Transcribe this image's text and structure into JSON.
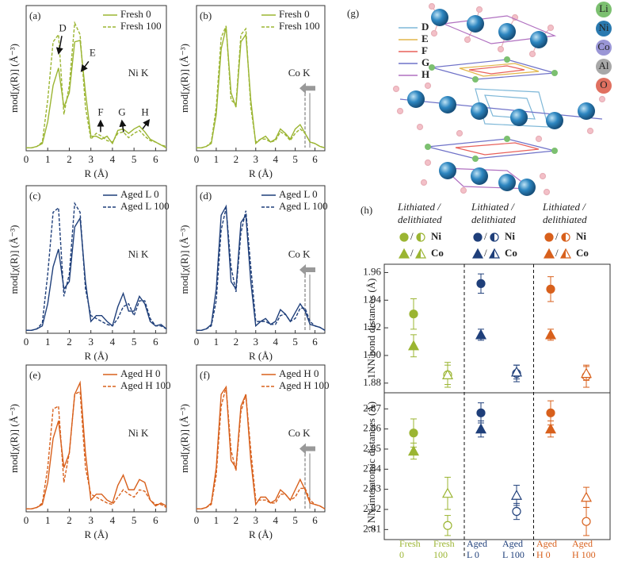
{
  "chart_data": [
    {
      "type": "line",
      "label": "(a)",
      "edge": "Ni K",
      "xlabel": "R (Å)",
      "ylabel": "mod[χ(R)] (Å⁻³)",
      "x": [
        0,
        0.25,
        0.5,
        0.75,
        1,
        1.25,
        1.5,
        1.75,
        2,
        2.25,
        2.5,
        2.75,
        3,
        3.25,
        3.5,
        3.75,
        4,
        4.25,
        4.5,
        4.75,
        5,
        5.25,
        5.5,
        5.75,
        6,
        6.25,
        6.5
      ],
      "xlim": [
        0,
        6.5
      ],
      "xticks": [
        0,
        1,
        2,
        3,
        4,
        5,
        6
      ],
      "ylim": [
        0,
        1
      ],
      "series": [
        {
          "name": "Fresh 0",
          "color": "#9bb532",
          "dash": false,
          "values": [
            0.02,
            0.02,
            0.03,
            0.05,
            0.2,
            0.45,
            0.57,
            0.3,
            0.4,
            0.75,
            0.76,
            0.4,
            0.1,
            0.1,
            0.08,
            0.1,
            0.05,
            0.14,
            0.15,
            0.12,
            0.15,
            0.17,
            0.13,
            0.08,
            0.06,
            0.04,
            0.02
          ]
        },
        {
          "name": "Fresh 100",
          "color": "#9bb532",
          "dash": true,
          "values": [
            0.02,
            0.02,
            0.03,
            0.06,
            0.35,
            0.75,
            0.8,
            0.25,
            0.45,
            0.88,
            0.8,
            0.3,
            0.08,
            0.12,
            0.1,
            0.07,
            0.06,
            0.12,
            0.13,
            0.09,
            0.12,
            0.14,
            0.1,
            0.07,
            0.06,
            0.04,
            0.03
          ]
        }
      ],
      "annotations": [
        {
          "text": "D",
          "x": 1.69,
          "y": 0.84
        },
        {
          "text": "E",
          "x": 3.08,
          "y": 0.67
        },
        {
          "text": "F",
          "x": 3.45,
          "y": 0.26
        },
        {
          "text": "G",
          "x": 4.44,
          "y": 0.26
        },
        {
          "text": "H",
          "x": 5.51,
          "y": 0.26
        }
      ]
    },
    {
      "type": "line",
      "label": "(b)",
      "edge": "Co K",
      "xlabel": "R (Å)",
      "ylabel": "mod[χ(R)] (Å⁻³)",
      "x": [
        0,
        0.25,
        0.5,
        0.75,
        1,
        1.25,
        1.5,
        1.75,
        2,
        2.25,
        2.5,
        2.75,
        3,
        3.25,
        3.5,
        3.75,
        4,
        4.25,
        4.5,
        4.75,
        5,
        5.25,
        5.5,
        5.75,
        6,
        6.25,
        6.5
      ],
      "xlim": [
        0,
        6.5
      ],
      "xticks": [
        0,
        1,
        2,
        3,
        4,
        5,
        6
      ],
      "ylim": [
        0,
        1
      ],
      "series": [
        {
          "name": "Fresh 0",
          "color": "#9bb532",
          "dash": false,
          "values": [
            0.02,
            0.02,
            0.03,
            0.05,
            0.25,
            0.7,
            0.85,
            0.4,
            0.3,
            0.75,
            0.8,
            0.35,
            0.05,
            0.08,
            0.1,
            0.06,
            0.08,
            0.15,
            0.12,
            0.08,
            0.15,
            0.18,
            0.12,
            0.06,
            0.05,
            0.03,
            0.02
          ]
        },
        {
          "name": "Fresh 100",
          "color": "#9bb532",
          "dash": true,
          "values": [
            0.02,
            0.02,
            0.03,
            0.06,
            0.3,
            0.78,
            0.86,
            0.35,
            0.32,
            0.8,
            0.84,
            0.3,
            0.06,
            0.08,
            0.08,
            0.06,
            0.07,
            0.13,
            0.11,
            0.07,
            0.12,
            0.15,
            0.12,
            0.06,
            0.05,
            0.03,
            0.02
          ]
        }
      ]
    },
    {
      "type": "line",
      "label": "(c)",
      "edge": "Ni K",
      "xlabel": "R (Å)",
      "ylabel": "mod[χ(R)] (Å⁻³)",
      "x": [
        0,
        0.25,
        0.5,
        0.75,
        1,
        1.25,
        1.5,
        1.75,
        2,
        2.25,
        2.5,
        2.75,
        3,
        3.25,
        3.5,
        3.75,
        4,
        4.25,
        4.5,
        4.75,
        5,
        5.25,
        5.5,
        5.75,
        6,
        6.25,
        6.5
      ],
      "xlim": [
        0,
        6.5
      ],
      "xticks": [
        0,
        1,
        2,
        3,
        4,
        5,
        6
      ],
      "ylim": [
        0,
        1
      ],
      "series": [
        {
          "name": "Aged L 0",
          "color": "#1f3f7a",
          "dash": false,
          "values": [
            0.02,
            0.02,
            0.03,
            0.05,
            0.2,
            0.45,
            0.57,
            0.3,
            0.35,
            0.72,
            0.78,
            0.35,
            0.08,
            0.12,
            0.12,
            0.08,
            0.05,
            0.18,
            0.27,
            0.15,
            0.15,
            0.25,
            0.2,
            0.08,
            0.05,
            0.06,
            0.03
          ]
        },
        {
          "name": "Aged L 100",
          "color": "#1f3f7a",
          "dash": true,
          "values": [
            0.02,
            0.02,
            0.03,
            0.07,
            0.4,
            0.82,
            0.85,
            0.25,
            0.4,
            0.88,
            0.82,
            0.3,
            0.12,
            0.1,
            0.08,
            0.06,
            0.05,
            0.1,
            0.18,
            0.2,
            0.12,
            0.22,
            0.22,
            0.1,
            0.05,
            0.05,
            0.03
          ]
        }
      ]
    },
    {
      "type": "line",
      "label": "(d)",
      "edge": "Co K",
      "xlabel": "R (Å)",
      "ylabel": "mod[χ(R)] (Å⁻³)",
      "x": [
        0,
        0.25,
        0.5,
        0.75,
        1,
        1.25,
        1.5,
        1.75,
        2,
        2.25,
        2.5,
        2.75,
        3,
        3.25,
        3.5,
        3.75,
        4,
        4.25,
        4.5,
        4.75,
        5,
        5.25,
        5.5,
        5.75,
        6,
        6.25,
        6.5
      ],
      "xlim": [
        0,
        6.5
      ],
      "xticks": [
        0,
        1,
        2,
        3,
        4,
        5,
        6
      ],
      "ylim": [
        0,
        1
      ],
      "series": [
        {
          "name": "Aged L 0",
          "color": "#1f3f7a",
          "dash": false,
          "values": [
            0.02,
            0.02,
            0.03,
            0.06,
            0.3,
            0.8,
            0.86,
            0.35,
            0.3,
            0.75,
            0.8,
            0.35,
            0.05,
            0.08,
            0.1,
            0.06,
            0.08,
            0.16,
            0.13,
            0.08,
            0.14,
            0.2,
            0.15,
            0.06,
            0.05,
            0.04,
            0.02
          ]
        },
        {
          "name": "Aged L 100",
          "color": "#1f3f7a",
          "dash": true,
          "values": [
            0.02,
            0.02,
            0.03,
            0.05,
            0.22,
            0.7,
            0.85,
            0.45,
            0.28,
            0.68,
            0.83,
            0.45,
            0.08,
            0.08,
            0.08,
            0.06,
            0.06,
            0.12,
            0.13,
            0.08,
            0.1,
            0.17,
            0.17,
            0.08,
            0.05,
            0.04,
            0.02
          ]
        }
      ]
    },
    {
      "type": "line",
      "label": "(e)",
      "edge": "Ni K",
      "xlabel": "R (Å)",
      "ylabel": "mod[χ(R)] (Å⁻³)",
      "x": [
        0,
        0.25,
        0.5,
        0.75,
        1,
        1.25,
        1.5,
        1.75,
        2,
        2.25,
        2.5,
        2.75,
        3,
        3.25,
        3.5,
        3.75,
        4,
        4.25,
        4.5,
        4.75,
        5,
        5.25,
        5.5,
        5.75,
        6,
        6.25,
        6.5
      ],
      "xlim": [
        0,
        6.5
      ],
      "xticks": [
        0,
        1,
        2,
        3,
        4,
        5,
        6
      ],
      "ylim": [
        0,
        1
      ],
      "series": [
        {
          "name": "Aged H 0",
          "color": "#d8601c",
          "dash": false,
          "values": [
            0.02,
            0.02,
            0.03,
            0.05,
            0.2,
            0.5,
            0.62,
            0.3,
            0.4,
            0.8,
            0.88,
            0.4,
            0.08,
            0.12,
            0.12,
            0.08,
            0.06,
            0.18,
            0.25,
            0.15,
            0.15,
            0.22,
            0.2,
            0.08,
            0.04,
            0.06,
            0.04
          ]
        },
        {
          "name": "Aged H 100",
          "color": "#d8601c",
          "dash": true,
          "values": [
            0.02,
            0.02,
            0.03,
            0.06,
            0.3,
            0.7,
            0.72,
            0.2,
            0.4,
            0.8,
            0.82,
            0.3,
            0.12,
            0.1,
            0.08,
            0.06,
            0.05,
            0.1,
            0.15,
            0.12,
            0.1,
            0.15,
            0.14,
            0.08,
            0.05,
            0.05,
            0.03
          ]
        }
      ]
    },
    {
      "type": "line",
      "label": "(f)",
      "edge": "Co K",
      "xlabel": "R (Å)",
      "ylabel": "mod[χ(R)] (Å⁻³)",
      "x": [
        0,
        0.25,
        0.5,
        0.75,
        1,
        1.25,
        1.5,
        1.75,
        2,
        2.25,
        2.5,
        2.75,
        3,
        3.25,
        3.5,
        3.75,
        4,
        4.25,
        4.5,
        4.75,
        5,
        5.25,
        5.5,
        5.75,
        6,
        6.25,
        6.5
      ],
      "xlim": [
        0,
        6.5
      ],
      "xticks": [
        0,
        1,
        2,
        3,
        4,
        5,
        6
      ],
      "ylim": [
        0,
        1
      ],
      "series": [
        {
          "name": "Aged H 0",
          "color": "#d8601c",
          "dash": false,
          "values": [
            0.02,
            0.02,
            0.03,
            0.06,
            0.3,
            0.8,
            0.85,
            0.35,
            0.3,
            0.72,
            0.8,
            0.35,
            0.05,
            0.1,
            0.1,
            0.06,
            0.08,
            0.15,
            0.12,
            0.08,
            0.15,
            0.22,
            0.15,
            0.06,
            0.05,
            0.04,
            0.02
          ]
        },
        {
          "name": "Aged H 100",
          "color": "#d8601c",
          "dash": true,
          "values": [
            0.02,
            0.02,
            0.03,
            0.05,
            0.25,
            0.72,
            0.85,
            0.42,
            0.28,
            0.68,
            0.8,
            0.42,
            0.08,
            0.08,
            0.08,
            0.06,
            0.06,
            0.12,
            0.12,
            0.08,
            0.1,
            0.16,
            0.16,
            0.08,
            0.05,
            0.04,
            0.02
          ]
        }
      ]
    },
    {
      "type": "errorbar",
      "label": "(h)",
      "categories": [
        "Fresh 0",
        "Fresh 100",
        "Aged L 0",
        "Aged L 100",
        "Aged H 0",
        "Aged H 100"
      ],
      "colors": [
        "#9bb532",
        "#9bb532",
        "#1f3f7a",
        "#1f3f7a",
        "#d8601c",
        "#d8601c"
      ],
      "filled": [
        true,
        false,
        true,
        false,
        true,
        false
      ],
      "legend": {
        "separator": "/",
        "groups": [
          {
            "title": [
              "Lithiated /",
              "delithiated"
            ],
            "color": "#9bb532"
          },
          {
            "title": [
              "Lithiated /",
              "delithiated"
            ],
            "color": "#1f3f7a"
          },
          {
            "title": [
              "Lithiated /",
              "delithiated"
            ],
            "color": "#d8601c"
          }
        ]
      },
      "panels": [
        {
          "ylabel": "1NN bond distances (Å)",
          "ylim": [
            1.873,
            1.966
          ],
          "yticks": [
            1.88,
            {
              "value": 1.9,
              "label": "1.90"
            },
            1.92,
            1.94,
            1.96
          ],
          "series": [
            {
              "name": "Ni",
              "marker": "circle",
              "values": [
                1.93,
                1.886,
                1.952,
                1.887,
                1.948,
                1.885
              ],
              "errors": [
                0.011,
                0.009,
                0.007,
                0.006,
                0.009,
                0.008
              ]
            },
            {
              "name": "Co",
              "marker": "triangle",
              "values": [
                1.907,
                1.886,
                1.915,
                1.888,
                1.915,
                1.887
              ],
              "errors": [
                0.008,
                0.007,
                0.004,
                0.005,
                0.004,
                0.005
              ]
            }
          ]
        },
        {
          "ylabel": "2 NN interatomic distances (Å)",
          "ylim": [
            2.805,
            2.878
          ],
          "yticks": [
            2.81,
            2.82,
            2.83,
            2.84,
            2.85,
            2.86,
            2.87
          ],
          "series": [
            {
              "name": "Ni",
              "marker": "circle",
              "values": [
                2.858,
                2.812,
                2.868,
                2.819,
                2.868,
                2.814
              ],
              "errors": [
                0.007,
                0.005,
                0.005,
                0.004,
                0.006,
                0.007
              ]
            },
            {
              "name": "Co",
              "marker": "triangle",
              "values": [
                2.849,
                2.828,
                2.86,
                2.827,
                2.86,
                2.826
              ],
              "errors": [
                0.004,
                0.008,
                0.004,
                0.005,
                0.004,
                0.005
              ]
            }
          ]
        }
      ]
    }
  ],
  "structure": {
    "label": "(g)",
    "sites": [
      {
        "name": "D",
        "color": "#7fb8d8"
      },
      {
        "name": "E",
        "color": "#e2b64a"
      },
      {
        "name": "F",
        "color": "#e8605a"
      },
      {
        "name": "G",
        "color": "#6f72c8"
      },
      {
        "name": "H",
        "color": "#b070c0"
      }
    ],
    "elements": [
      {
        "name": "Li",
        "color": "#7cc070"
      },
      {
        "name": "Ni",
        "color": "#2a7ab0"
      },
      {
        "name": "Co",
        "color": "#9a96d6"
      },
      {
        "name": "Al",
        "color": "#a8a8a8"
      },
      {
        "name": "O",
        "color": "#e07060"
      }
    ]
  }
}
